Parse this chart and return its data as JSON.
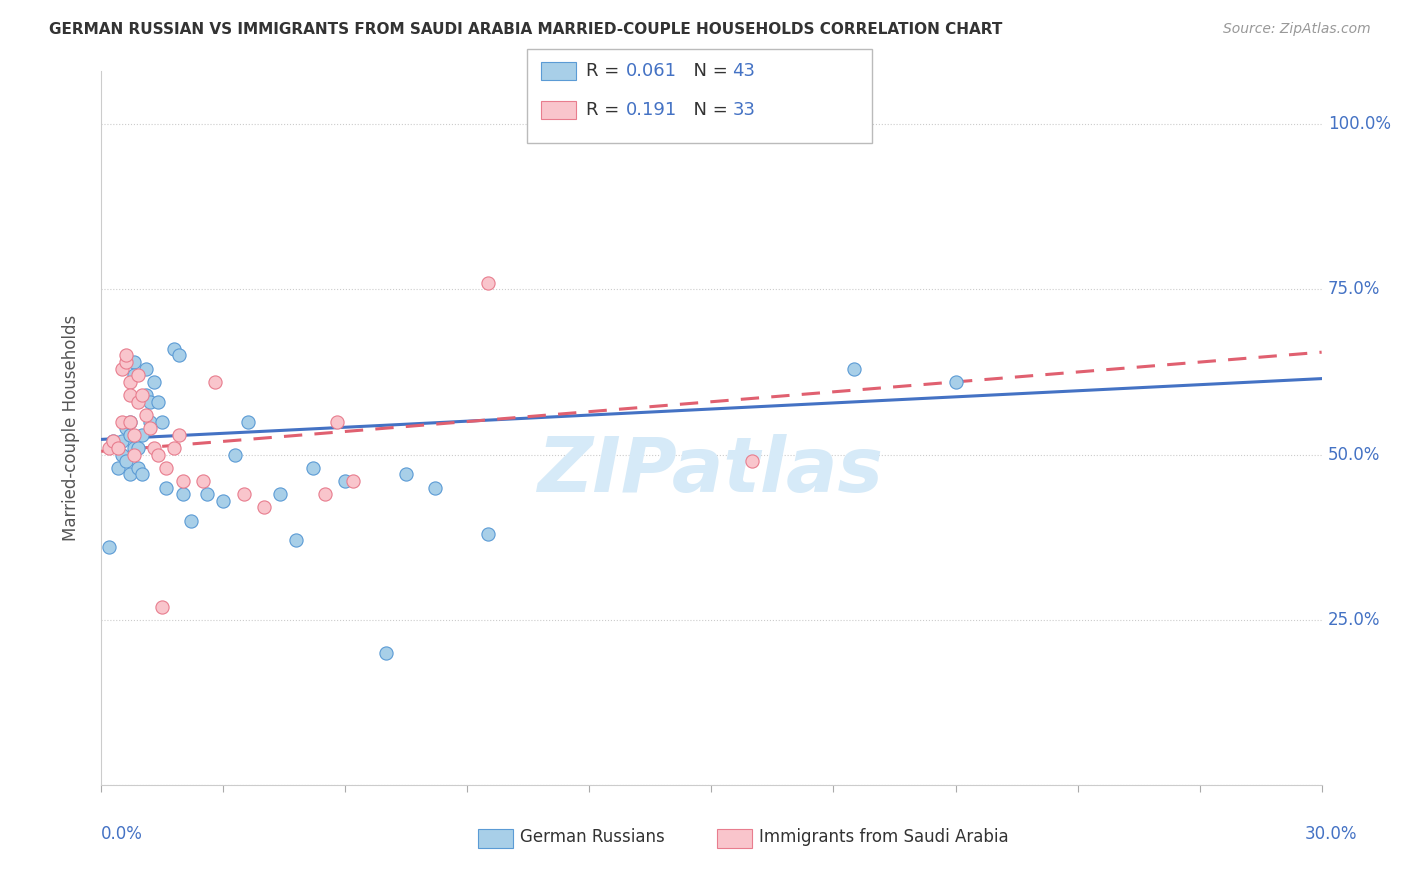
{
  "title": "GERMAN RUSSIAN VS IMMIGRANTS FROM SAUDI ARABIA MARRIED-COUPLE HOUSEHOLDS CORRELATION CHART",
  "source": "Source: ZipAtlas.com",
  "ylabel": "Married-couple Households",
  "y_ticks": [
    0.0,
    0.25,
    0.5,
    0.75,
    1.0
  ],
  "y_tick_labels_right": [
    "",
    "25.0%",
    "50.0%",
    "75.0%",
    "100.0%"
  ],
  "x_lim": [
    0.0,
    0.3
  ],
  "y_lim": [
    0.0,
    1.08
  ],
  "legend1_R": "0.061",
  "legend1_N": "43",
  "legend2_R": "0.191",
  "legend2_N": "33",
  "color_blue_fill": "#a8cfe8",
  "color_blue_edge": "#5b9bd5",
  "color_pink_fill": "#f9c5cc",
  "color_pink_edge": "#e87d8e",
  "color_line_blue": "#4472c4",
  "color_line_pink": "#e06070",
  "color_axis_text": "#4472c4",
  "color_label": "#555555",
  "watermark_color": "#d6eaf8",
  "blue_scatter_x": [
    0.002,
    0.003,
    0.004,
    0.005,
    0.005,
    0.006,
    0.006,
    0.007,
    0.007,
    0.007,
    0.008,
    0.008,
    0.008,
    0.009,
    0.009,
    0.01,
    0.01,
    0.011,
    0.011,
    0.012,
    0.012,
    0.013,
    0.014,
    0.015,
    0.016,
    0.018,
    0.019,
    0.02,
    0.022,
    0.026,
    0.03,
    0.033,
    0.036,
    0.044,
    0.048,
    0.052,
    0.06,
    0.07,
    0.075,
    0.082,
    0.095,
    0.185,
    0.21
  ],
  "blue_scatter_y": [
    0.36,
    0.52,
    0.48,
    0.52,
    0.5,
    0.54,
    0.49,
    0.53,
    0.47,
    0.55,
    0.51,
    0.64,
    0.62,
    0.51,
    0.48,
    0.53,
    0.47,
    0.59,
    0.63,
    0.58,
    0.55,
    0.61,
    0.58,
    0.55,
    0.45,
    0.66,
    0.65,
    0.44,
    0.4,
    0.44,
    0.43,
    0.5,
    0.55,
    0.44,
    0.37,
    0.48,
    0.46,
    0.2,
    0.47,
    0.45,
    0.38,
    0.63,
    0.61
  ],
  "pink_scatter_x": [
    0.002,
    0.003,
    0.004,
    0.005,
    0.005,
    0.006,
    0.006,
    0.007,
    0.007,
    0.007,
    0.008,
    0.008,
    0.009,
    0.009,
    0.01,
    0.011,
    0.012,
    0.013,
    0.014,
    0.015,
    0.016,
    0.018,
    0.019,
    0.02,
    0.025,
    0.028,
    0.035,
    0.04,
    0.055,
    0.058,
    0.062,
    0.095,
    0.16
  ],
  "pink_scatter_y": [
    0.51,
    0.52,
    0.51,
    0.55,
    0.63,
    0.64,
    0.65,
    0.61,
    0.59,
    0.55,
    0.5,
    0.53,
    0.58,
    0.62,
    0.59,
    0.56,
    0.54,
    0.51,
    0.5,
    0.27,
    0.48,
    0.51,
    0.53,
    0.46,
    0.46,
    0.61,
    0.44,
    0.42,
    0.44,
    0.55,
    0.46,
    0.76,
    0.49
  ],
  "blue_line_x0": 0.0,
  "blue_line_y0": 0.523,
  "blue_line_x1": 0.3,
  "blue_line_y1": 0.615,
  "pink_line_x0": 0.0,
  "pink_line_y0": 0.505,
  "pink_line_x1": 0.3,
  "pink_line_y1": 0.655
}
